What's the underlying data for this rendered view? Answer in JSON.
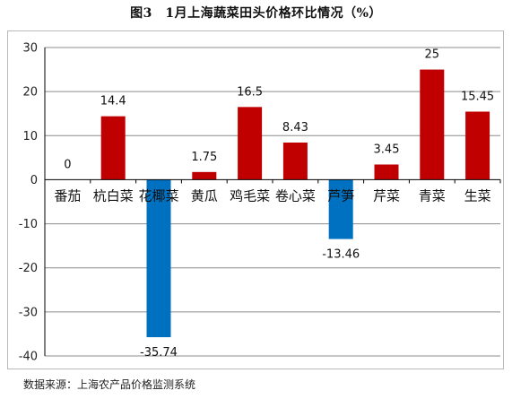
{
  "title": "图3　1月上海蔬菜田头价格环比情况（%）",
  "source": "数据来源：上海农产品价格监测系统",
  "colors": {
    "positive": "#c00000",
    "negative": "#0070c0",
    "grid": "#8c8c8c",
    "axis": "#000000"
  },
  "chart_data": {
    "type": "bar",
    "title": "图3　1月上海蔬菜田头价格环比情况（%）",
    "xlabel": "",
    "ylabel": "",
    "ylim": [
      -40,
      30
    ],
    "yticks": [
      30,
      20,
      10,
      0,
      -10,
      -20,
      -30,
      -40
    ],
    "grid": true,
    "legend": "none",
    "categories": [
      "番茄",
      "杭白菜",
      "花椰菜",
      "黄瓜",
      "鸡毛菜",
      "卷心菜",
      "芦笋",
      "芹菜",
      "青菜",
      "生菜"
    ],
    "values": [
      0,
      14.4,
      -35.74,
      1.75,
      16.5,
      8.43,
      -13.46,
      3.45,
      25,
      15.45
    ],
    "labels": [
      "0",
      "14.4",
      "-35.74",
      "1.75",
      "16.5",
      "8.43",
      "-13.46",
      "3.45",
      "25",
      "15.45"
    ]
  }
}
